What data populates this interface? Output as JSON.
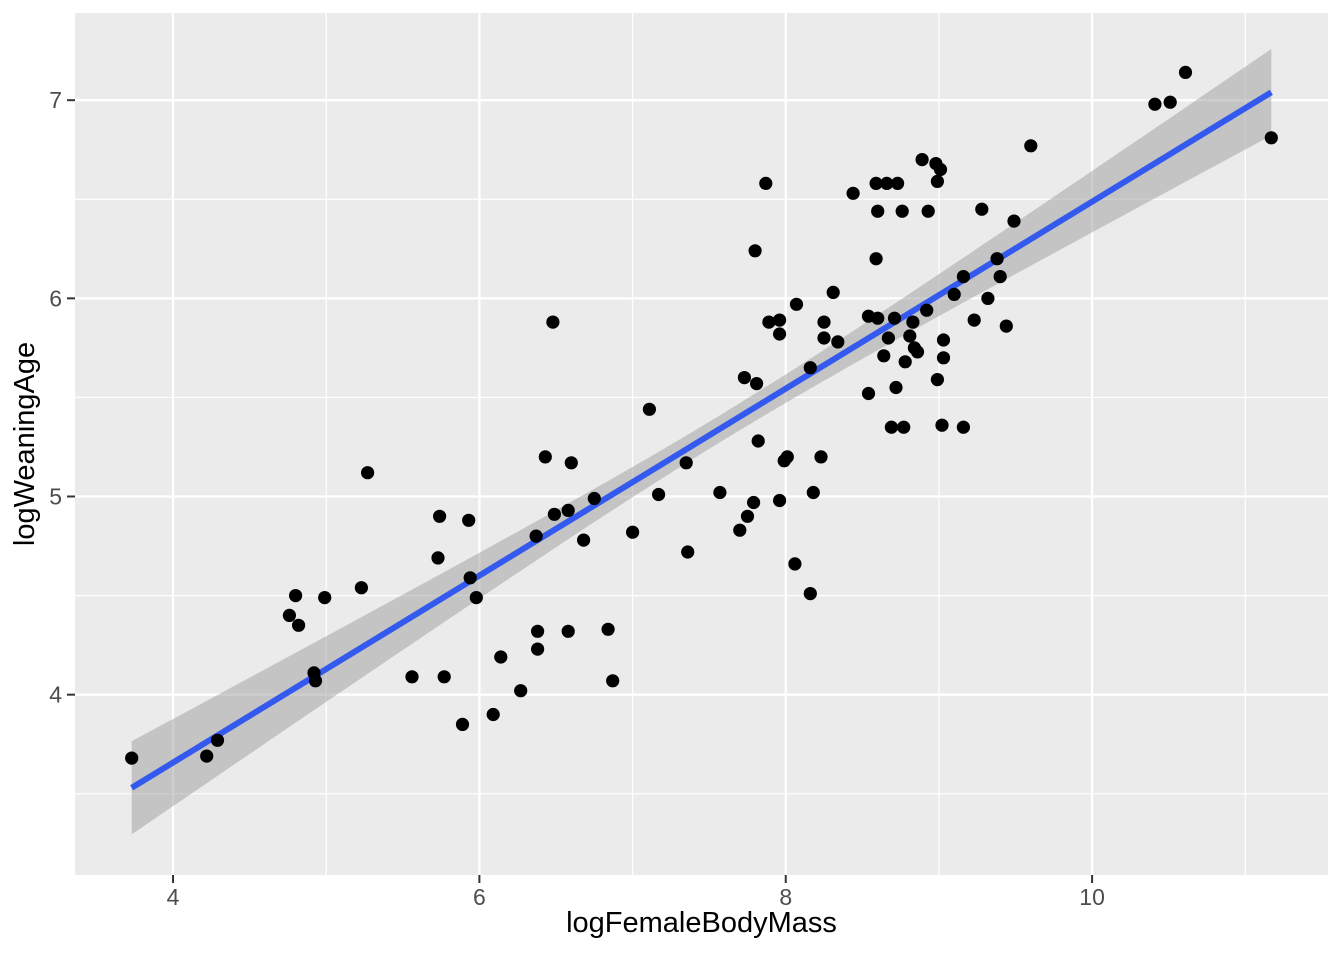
{
  "chart_data": {
    "type": "scatter",
    "title": "",
    "xlabel": "logFemaleBodyMass",
    "ylabel": "logWeaningAge",
    "xlim": [
      3.36,
      11.54
    ],
    "ylim": [
      3.09,
      7.44
    ],
    "x_ticks": [
      4,
      6,
      8,
      10
    ],
    "y_ticks": [
      4,
      5,
      6,
      7
    ],
    "x_minor": [
      5,
      7,
      9,
      11
    ],
    "y_minor": [
      3.5,
      4.5,
      5.5,
      6.5
    ],
    "grid": "on",
    "legend": "none",
    "points": [
      [
        3.73,
        3.68
      ],
      [
        4.22,
        3.69
      ],
      [
        4.29,
        3.77
      ],
      [
        4.76,
        4.4
      ],
      [
        4.8,
        4.5
      ],
      [
        4.82,
        4.35
      ],
      [
        4.99,
        4.49
      ],
      [
        5.23,
        4.54
      ],
      [
        4.92,
        4.11
      ],
      [
        4.93,
        4.07
      ],
      [
        5.27,
        5.12
      ],
      [
        5.56,
        4.09
      ],
      [
        5.77,
        4.09
      ],
      [
        5.89,
        3.85
      ],
      [
        6.09,
        3.9
      ],
      [
        6.14,
        4.19
      ],
      [
        5.74,
        4.9
      ],
      [
        5.93,
        4.88
      ],
      [
        5.73,
        4.69
      ],
      [
        5.94,
        4.59
      ],
      [
        5.98,
        4.49
      ],
      [
        6.37,
        4.8
      ],
      [
        6.43,
        5.2
      ],
      [
        6.6,
        5.17
      ],
      [
        6.49,
        4.91
      ],
      [
        6.58,
        4.93
      ],
      [
        6.75,
        4.99
      ],
      [
        7.17,
        5.01
      ],
      [
        6.48,
        5.88
      ],
      [
        6.38,
        4.32
      ],
      [
        6.58,
        4.32
      ],
      [
        6.84,
        4.33
      ],
      [
        6.38,
        4.23
      ],
      [
        6.87,
        4.07
      ],
      [
        6.27,
        4.02
      ],
      [
        6.68,
        4.78
      ],
      [
        7.0,
        4.82
      ],
      [
        7.11,
        5.44
      ],
      [
        7.35,
        5.17
      ],
      [
        7.36,
        4.72
      ],
      [
        7.57,
        5.02
      ],
      [
        7.7,
        4.83
      ],
      [
        7.75,
        4.9
      ],
      [
        7.79,
        4.97
      ],
      [
        7.73,
        5.6
      ],
      [
        7.81,
        5.57
      ],
      [
        7.82,
        5.28
      ],
      [
        7.87,
        6.58
      ],
      [
        7.8,
        6.24
      ],
      [
        7.89,
        5.88
      ],
      [
        7.96,
        5.89
      ],
      [
        7.96,
        5.82
      ],
      [
        8.07,
        5.97
      ],
      [
        8.31,
        6.03
      ],
      [
        8.25,
        5.88
      ],
      [
        8.25,
        5.8
      ],
      [
        8.34,
        5.78
      ],
      [
        8.06,
        4.66
      ],
      [
        8.16,
        4.51
      ],
      [
        8.18,
        5.02
      ],
      [
        7.96,
        4.98
      ],
      [
        7.99,
        5.18
      ],
      [
        8.01,
        5.2
      ],
      [
        8.23,
        5.2
      ],
      [
        8.16,
        5.65
      ],
      [
        8.44,
        6.53
      ],
      [
        8.59,
        6.58
      ],
      [
        8.66,
        6.58
      ],
      [
        8.73,
        6.58
      ],
      [
        8.89,
        6.7
      ],
      [
        8.98,
        6.68
      ],
      [
        9.01,
        6.65
      ],
      [
        8.99,
        6.59
      ],
      [
        8.6,
        6.44
      ],
      [
        8.76,
        6.44
      ],
      [
        8.93,
        6.44
      ],
      [
        9.28,
        6.45
      ],
      [
        9.49,
        6.39
      ],
      [
        8.59,
        6.2
      ],
      [
        9.16,
        6.11
      ],
      [
        9.38,
        6.2
      ],
      [
        9.4,
        6.11
      ],
      [
        9.6,
        6.77
      ],
      [
        8.54,
        5.91
      ],
      [
        8.6,
        5.9
      ],
      [
        8.71,
        5.9
      ],
      [
        8.83,
        5.88
      ],
      [
        8.92,
        5.94
      ],
      [
        9.1,
        6.02
      ],
      [
        9.32,
        6.0
      ],
      [
        9.23,
        5.89
      ],
      [
        9.44,
        5.86
      ],
      [
        8.67,
        5.8
      ],
      [
        8.81,
        5.81
      ],
      [
        8.84,
        5.75
      ],
      [
        8.86,
        5.73
      ],
      [
        9.03,
        5.79
      ],
      [
        9.03,
        5.7
      ],
      [
        8.64,
        5.71
      ],
      [
        8.78,
        5.68
      ],
      [
        8.99,
        5.59
      ],
      [
        8.72,
        5.55
      ],
      [
        8.54,
        5.52
      ],
      [
        8.69,
        5.35
      ],
      [
        8.77,
        5.35
      ],
      [
        9.02,
        5.36
      ],
      [
        9.16,
        5.35
      ],
      [
        10.41,
        6.98
      ],
      [
        10.51,
        6.99
      ],
      [
        10.61,
        7.14
      ],
      [
        11.17,
        6.81
      ]
    ],
    "smooth": {
      "x0": 3.73,
      "y0": 3.53,
      "x1": 11.17,
      "y1": 7.04,
      "ci_min_halfwidth": 0.068,
      "ci_center": 7.6,
      "ci_spread": 1.37
    },
    "colors": {
      "panel_background": "#EBEBEB",
      "grid_major": "#FFFFFF",
      "grid_minor": "#FFFFFF",
      "point": "#000000",
      "smooth_line": "#3359EE",
      "ci_ribbon": "rgba(153,153,153,0.48)",
      "tick_label": "#4D4D4D",
      "tick_mark": "#333333",
      "axis_title": "#000000"
    }
  }
}
